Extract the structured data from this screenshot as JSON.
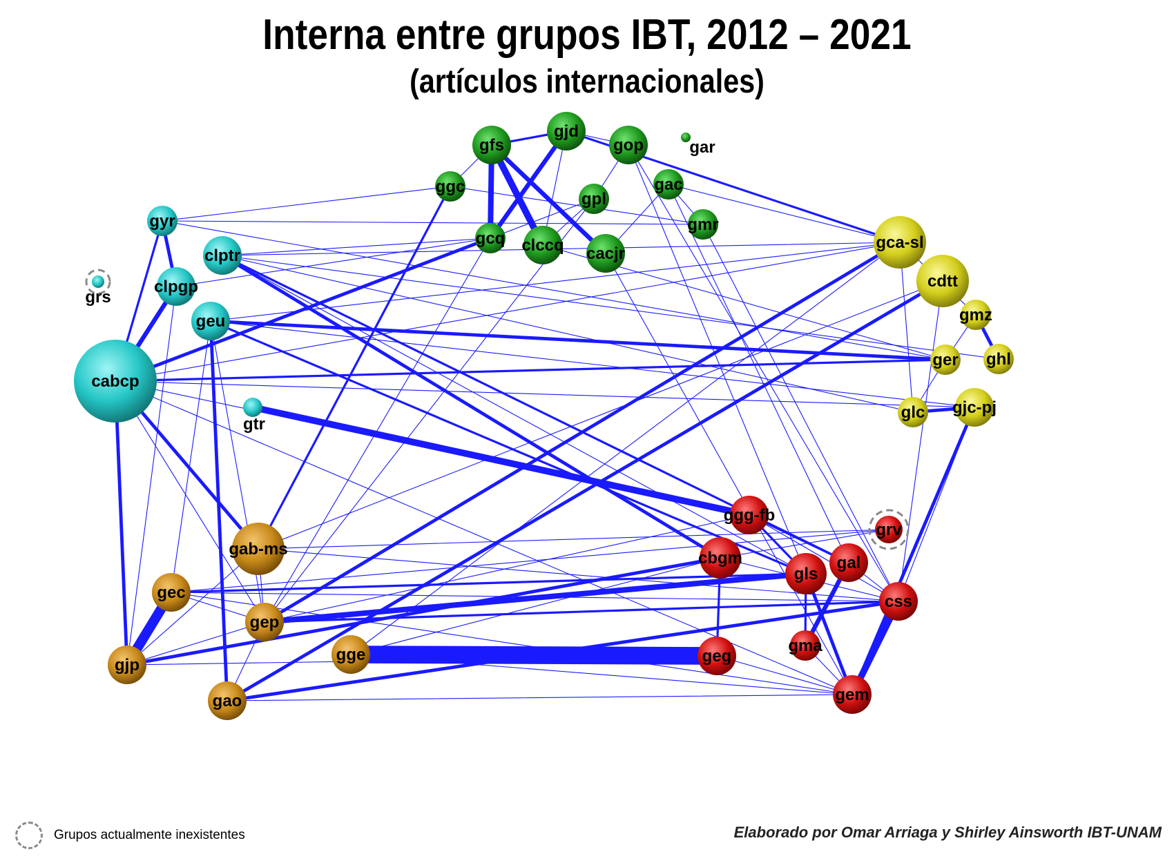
{
  "title": "Interna entre grupos IBT, 2012 – 2021",
  "subtitle": "(artículos internacionales)",
  "legend": {
    "label": "Grupos actualmente inexistentes",
    "icon": "dashed-circle-icon"
  },
  "credit": "Elaborado por Omar Arriaga y Shirley Ainsworth IBT-UNAM",
  "colors": {
    "edge": "#1a1aff",
    "green": "#1f9a1f",
    "cyan": "#26c7c7",
    "yellow": "#d4cf1c",
    "orange": "#c8891a",
    "red": "#d01010"
  },
  "nodes": [
    {
      "id": "gfs",
      "group": "green",
      "size": 3
    },
    {
      "id": "gjd",
      "group": "green",
      "size": 3
    },
    {
      "id": "gop",
      "group": "green",
      "size": 3
    },
    {
      "id": "gar",
      "group": "green",
      "size": 1
    },
    {
      "id": "ggc",
      "group": "green",
      "size": 2
    },
    {
      "id": "gpl",
      "group": "green",
      "size": 2
    },
    {
      "id": "gac",
      "group": "green",
      "size": 2
    },
    {
      "id": "gmr",
      "group": "green",
      "size": 2
    },
    {
      "id": "gcq",
      "group": "green",
      "size": 2
    },
    {
      "id": "clccq",
      "group": "green",
      "size": 3
    },
    {
      "id": "cacjr",
      "group": "green",
      "size": 3
    },
    {
      "id": "gyr",
      "group": "cyan",
      "size": 2
    },
    {
      "id": "clptr",
      "group": "cyan",
      "size": 3
    },
    {
      "id": "grs",
      "group": "cyan",
      "size": 1,
      "inactive": true
    },
    {
      "id": "clpgp",
      "group": "cyan",
      "size": 3
    },
    {
      "id": "geu",
      "group": "cyan",
      "size": 3
    },
    {
      "id": "cabcp",
      "group": "cyan",
      "size": 8
    },
    {
      "id": "gtr",
      "group": "cyan",
      "size": 2
    },
    {
      "id": "gca-sl",
      "group": "yellow",
      "size": 5
    },
    {
      "id": "cdtt",
      "group": "yellow",
      "size": 5
    },
    {
      "id": "gmz",
      "group": "yellow",
      "size": 2
    },
    {
      "id": "ger",
      "group": "yellow",
      "size": 2
    },
    {
      "id": "ghl",
      "group": "yellow",
      "size": 2
    },
    {
      "id": "glc",
      "group": "yellow",
      "size": 2
    },
    {
      "id": "gjc-pj",
      "group": "yellow",
      "size": 3
    },
    {
      "id": "gab-ms",
      "group": "orange",
      "size": 5
    },
    {
      "id": "gec",
      "group": "orange",
      "size": 3
    },
    {
      "id": "gep",
      "group": "orange",
      "size": 3
    },
    {
      "id": "gjp",
      "group": "orange",
      "size": 3
    },
    {
      "id": "gge",
      "group": "orange",
      "size": 3
    },
    {
      "id": "gao",
      "group": "orange",
      "size": 3
    },
    {
      "id": "ggg-fb",
      "group": "red",
      "size": 3
    },
    {
      "id": "grv",
      "group": "red",
      "size": 2,
      "inactive": true
    },
    {
      "id": "cbgm",
      "group": "red",
      "size": 4
    },
    {
      "id": "gls",
      "group": "red",
      "size": 4
    },
    {
      "id": "gal",
      "group": "red",
      "size": 3
    },
    {
      "id": "css",
      "group": "red",
      "size": 3
    },
    {
      "id": "gma",
      "group": "red",
      "size": 2
    },
    {
      "id": "geg",
      "group": "red",
      "size": 3
    },
    {
      "id": "gem",
      "group": "red",
      "size": 3
    }
  ],
  "edges": [
    {
      "s": "gfs",
      "t": "gcq",
      "w": 5
    },
    {
      "s": "gfs",
      "t": "clccq",
      "w": 6
    },
    {
      "s": "gfs",
      "t": "cacjr",
      "w": 4
    },
    {
      "s": "gfs",
      "t": "gjd",
      "w": 2
    },
    {
      "s": "gjd",
      "t": "gcq",
      "w": 4
    },
    {
      "s": "gjd",
      "t": "clccq",
      "w": 1
    },
    {
      "s": "gop",
      "t": "gjd",
      "w": 1
    },
    {
      "s": "gop",
      "t": "gpl",
      "w": 1
    },
    {
      "s": "ggc",
      "t": "gfs",
      "w": 1
    },
    {
      "s": "ggc",
      "t": "gab-ms",
      "w": 2
    },
    {
      "s": "ggc",
      "t": "gmr",
      "w": 1
    },
    {
      "s": "gpl",
      "t": "clccq",
      "w": 1
    },
    {
      "s": "gpl",
      "t": "gcq",
      "w": 1
    },
    {
      "s": "gac",
      "t": "gmr",
      "w": 1
    },
    {
      "s": "gac",
      "t": "cacjr",
      "w": 1
    },
    {
      "s": "gac",
      "t": "gca-sl",
      "w": 1
    },
    {
      "s": "gjd",
      "t": "gca-sl",
      "w": 2
    },
    {
      "s": "gop",
      "t": "css",
      "w": 1
    },
    {
      "s": "gop",
      "t": "gls",
      "w": 1
    },
    {
      "s": "gac",
      "t": "gal",
      "w": 1
    },
    {
      "s": "gyr",
      "t": "clpgp",
      "w": 3
    },
    {
      "s": "gyr",
      "t": "cabcp",
      "w": 2
    },
    {
      "s": "gyr",
      "t": "ggc",
      "w": 1
    },
    {
      "s": "gyr",
      "t": "gmr",
      "w": 1
    },
    {
      "s": "clpgp",
      "t": "cabcp",
      "w": 4
    },
    {
      "s": "clpgp",
      "t": "gjp",
      "w": 1
    },
    {
      "s": "clpgp",
      "t": "gcq",
      "w": 1
    },
    {
      "s": "clptr",
      "t": "cbgm",
      "w": 3
    },
    {
      "s": "clptr",
      "t": "gal",
      "w": 2
    },
    {
      "s": "clptr",
      "t": "gca-sl",
      "w": 1
    },
    {
      "s": "clptr",
      "t": "gcq",
      "w": 1
    },
    {
      "s": "clptr",
      "t": "gls",
      "w": 1
    },
    {
      "s": "geu",
      "t": "ger",
      "w": 3
    },
    {
      "s": "geu",
      "t": "gao",
      "w": 3
    },
    {
      "s": "geu",
      "t": "gls",
      "w": 2
    },
    {
      "s": "geu",
      "t": "gec",
      "w": 1
    },
    {
      "s": "geu",
      "t": "gep",
      "w": 1
    },
    {
      "s": "geu",
      "t": "gca-sl",
      "w": 1
    },
    {
      "s": "cabcp",
      "t": "gcq",
      "w": 3
    },
    {
      "s": "cabcp",
      "t": "gjp",
      "w": 3
    },
    {
      "s": "cabcp",
      "t": "gab-ms",
      "w": 3
    },
    {
      "s": "cabcp",
      "t": "ger",
      "w": 2
    },
    {
      "s": "cabcp",
      "t": "gca-sl",
      "w": 1
    },
    {
      "s": "cabcp",
      "t": "gjc-pj",
      "w": 1
    },
    {
      "s": "cabcp",
      "t": "gep",
      "w": 1
    },
    {
      "s": "cabcp",
      "t": "ggg-fb",
      "w": 1
    },
    {
      "s": "cabcp",
      "t": "gem",
      "w": 1
    },
    {
      "s": "gtr",
      "t": "ggg-fb",
      "w": 6
    },
    {
      "s": "gca-sl",
      "t": "gep",
      "w": 3
    },
    {
      "s": "gca-sl",
      "t": "gmz",
      "w": 1
    },
    {
      "s": "gca-sl",
      "t": "glc",
      "w": 1
    },
    {
      "s": "gca-sl",
      "t": "gge",
      "w": 1
    },
    {
      "s": "cdtt",
      "t": "gao",
      "w": 3
    },
    {
      "s": "cdtt",
      "t": "css",
      "w": 1
    },
    {
      "s": "cdtt",
      "t": "gab-ms",
      "w": 1
    },
    {
      "s": "gmz",
      "t": "ghl",
      "w": 3
    },
    {
      "s": "gmz",
      "t": "ger",
      "w": 1
    },
    {
      "s": "ger",
      "t": "glc",
      "w": 1
    },
    {
      "s": "glc",
      "t": "gjc-pj",
      "w": 3
    },
    {
      "s": "glc",
      "t": "clptr",
      "w": 1
    },
    {
      "s": "gjc-pj",
      "t": "gem",
      "w": 3
    },
    {
      "s": "gjc-pj",
      "t": "geu",
      "w": 1
    },
    {
      "s": "gjc-pj",
      "t": "css",
      "w": 1
    },
    {
      "s": "gab-ms",
      "t": "gep",
      "w": 1
    },
    {
      "s": "gab-ms",
      "t": "gjp",
      "w": 1
    },
    {
      "s": "gab-ms",
      "t": "css",
      "w": 1
    },
    {
      "s": "gab-ms",
      "t": "grv",
      "w": 1
    },
    {
      "s": "gec",
      "t": "gjp",
      "w": 9
    },
    {
      "s": "gec",
      "t": "gls",
      "w": 2
    },
    {
      "s": "gec",
      "t": "gep",
      "w": 1
    },
    {
      "s": "gec",
      "t": "css",
      "w": 1
    },
    {
      "s": "gec",
      "t": "gem",
      "w": 1
    },
    {
      "s": "gep",
      "t": "gls",
      "w": 5
    },
    {
      "s": "gep",
      "t": "css",
      "w": 2
    },
    {
      "s": "gep",
      "t": "gcq",
      "w": 1
    },
    {
      "s": "gep",
      "t": "ggg-fb",
      "w": 1
    },
    {
      "s": "gjp",
      "t": "cbgm",
      "w": 3
    },
    {
      "s": "gjp",
      "t": "geg",
      "w": 1
    },
    {
      "s": "gjp",
      "t": "gep",
      "w": 1
    },
    {
      "s": "gge",
      "t": "geg",
      "w": 16
    },
    {
      "s": "gge",
      "t": "gem",
      "w": 1
    },
    {
      "s": "gge",
      "t": "cbgm",
      "w": 1
    },
    {
      "s": "gao",
      "t": "gem",
      "w": 1
    },
    {
      "s": "gao",
      "t": "gep",
      "w": 1
    },
    {
      "s": "gao",
      "t": "css",
      "w": 3
    },
    {
      "s": "ggg-fb",
      "t": "gal",
      "w": 2
    },
    {
      "s": "ggg-fb",
      "t": "gls",
      "w": 2
    },
    {
      "s": "ggg-fb",
      "t": "css",
      "w": 1
    },
    {
      "s": "grv",
      "t": "cbgm",
      "w": 1
    },
    {
      "s": "grv",
      "t": "gec",
      "w": 1
    },
    {
      "s": "cbgm",
      "t": "geg",
      "w": 2
    },
    {
      "s": "cbgm",
      "t": "css",
      "w": 1
    },
    {
      "s": "gls",
      "t": "gem",
      "w": 3
    },
    {
      "s": "gls",
      "t": "gma",
      "w": 2
    },
    {
      "s": "gal",
      "t": "gma",
      "w": 4
    },
    {
      "s": "gal",
      "t": "css",
      "w": 1
    },
    {
      "s": "css",
      "t": "gem",
      "w": 6
    },
    {
      "s": "gma",
      "t": "gem",
      "w": 1
    },
    {
      "s": "geg",
      "t": "gem",
      "w": 1
    },
    {
      "s": "clccq",
      "t": "ger",
      "w": 1
    },
    {
      "s": "cacjr",
      "t": "gem",
      "w": 1
    },
    {
      "s": "gmr",
      "t": "css",
      "w": 1
    },
    {
      "s": "gpl",
      "t": "gep",
      "w": 1
    },
    {
      "s": "gyr",
      "t": "ger",
      "w": 1
    },
    {
      "s": "clptr",
      "t": "ghl",
      "w": 1
    }
  ]
}
